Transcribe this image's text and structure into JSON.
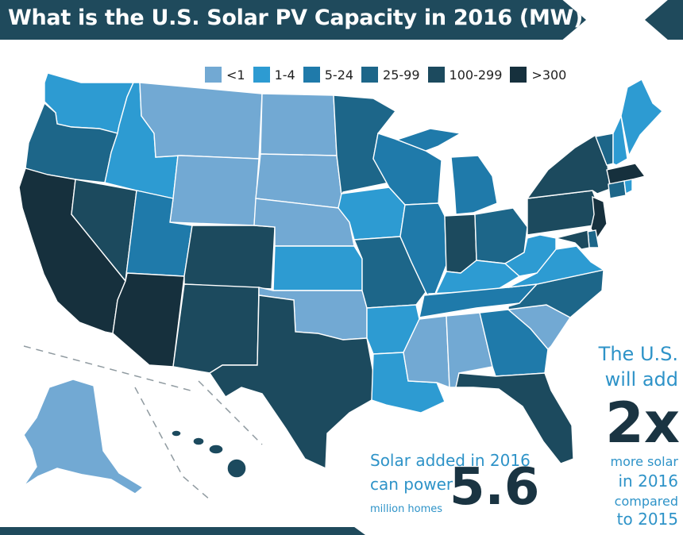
{
  "title": "What is the U.S. Solar PV Capacity in 2016 (MW)?",
  "legend": [
    {
      "label": "<1",
      "color": "#72a9d3"
    },
    {
      "label": "1-4",
      "color": "#2d9bd2"
    },
    {
      "label": "5-24",
      "color": "#1f7aaa"
    },
    {
      "label": "25-99",
      "color": "#1d6689"
    },
    {
      "label": "100-299",
      "color": "#1c4a5e"
    },
    {
      "label": ">300",
      "color": "#16303d"
    }
  ],
  "states": {
    "WA": "1-4",
    "OR": "25-99",
    "CA": ">300",
    "NV": "100-299",
    "ID": "1-4",
    "MT": "<1",
    "WY": "<1",
    "UT": "5-24",
    "AZ": ">300",
    "CO": "100-299",
    "NM": "100-299",
    "ND": "<1",
    "SD": "<1",
    "NE": "<1",
    "KS": "1-4",
    "OK": "<1",
    "TX": "100-299",
    "MN": "25-99",
    "IA": "1-4",
    "MO": "25-99",
    "AR": "1-4",
    "LA": "1-4",
    "WI": "5-24",
    "IL": "5-24",
    "MI": "5-24",
    "IN": "100-299",
    "OH": "25-99",
    "KY": "1-4",
    "TN": "5-24",
    "MS": "<1",
    "AL": "<1",
    "GA": "5-24",
    "FL": "100-299",
    "SC": "<1",
    "NC": "25-99",
    "VA": "1-4",
    "WV": "1-4",
    "PA": "100-299",
    "NY": "100-299",
    "VT": "25-99",
    "NH": "1-4",
    "ME": "1-4",
    "MA": ">300",
    "RI": "1-4",
    "CT": "25-99",
    "NJ": ">300",
    "DE": "25-99",
    "MD": "100-299",
    "AK": "<1",
    "HI": "100-299"
  },
  "homes_stat": {
    "line1": "Solar added in 2016",
    "line2": "can power",
    "line3": "million homes",
    "value": "5.6"
  },
  "growth_stat": {
    "line1": "The U.S.",
    "line2": "will add",
    "value": "2x",
    "line3": "more solar",
    "line4": "in 2016",
    "line5": "compared",
    "line6": "to 2015"
  }
}
